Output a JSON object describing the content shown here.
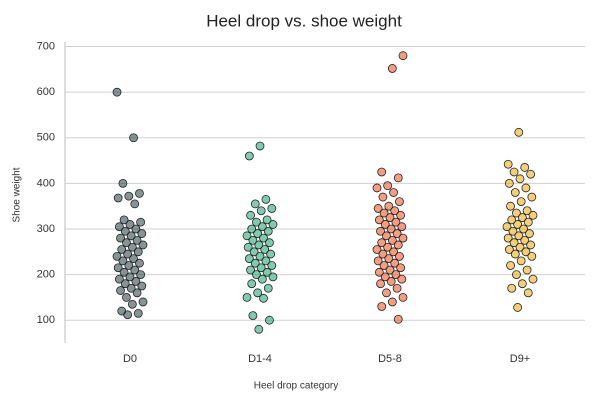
{
  "chart_data": {
    "type": "strip",
    "title": "Heel drop vs. shoe weight",
    "x_label": "Heel drop category",
    "y_label": "Shoe weight",
    "categories": [
      "D0",
      "D1-4",
      "D5-8",
      "D9+"
    ],
    "colors": [
      "#243c40",
      "#17a06e",
      "#ea4e1b",
      "#e9a80d"
    ],
    "values": [
      [
        600,
        500,
        400,
        378,
        372,
        368,
        355,
        320,
        315,
        310,
        305,
        300,
        295,
        290,
        285,
        280,
        275,
        270,
        265,
        260,
        255,
        250,
        245,
        240,
        235,
        230,
        225,
        220,
        215,
        210,
        205,
        200,
        195,
        190,
        185,
        180,
        175,
        170,
        165,
        160,
        150,
        140,
        135,
        120,
        115,
        112
      ],
      [
        482,
        460,
        365,
        355,
        345,
        340,
        330,
        320,
        315,
        310,
        305,
        300,
        295,
        290,
        285,
        280,
        275,
        270,
        265,
        260,
        255,
        250,
        245,
        240,
        235,
        230,
        225,
        220,
        215,
        210,
        205,
        200,
        195,
        190,
        180,
        170,
        160,
        150,
        148,
        110,
        100,
        80
      ],
      [
        680,
        652,
        425,
        412,
        395,
        390,
        380,
        370,
        360,
        350,
        345,
        340,
        335,
        330,
        325,
        320,
        315,
        310,
        305,
        300,
        295,
        290,
        285,
        280,
        275,
        270,
        265,
        260,
        255,
        250,
        245,
        240,
        235,
        230,
        225,
        220,
        215,
        210,
        205,
        200,
        195,
        190,
        185,
        180,
        170,
        160,
        150,
        140,
        130,
        102
      ],
      [
        512,
        442,
        435,
        425,
        420,
        410,
        400,
        390,
        380,
        370,
        360,
        350,
        340,
        335,
        330,
        325,
        320,
        315,
        310,
        305,
        300,
        295,
        290,
        285,
        280,
        275,
        270,
        265,
        260,
        255,
        250,
        245,
        240,
        230,
        220,
        210,
        200,
        190,
        180,
        170,
        160,
        128
      ]
    ],
    "ylim": [
      50,
      710
    ],
    "yticks": [
      100,
      200,
      300,
      400,
      500,
      600,
      700
    ],
    "grid": true
  }
}
